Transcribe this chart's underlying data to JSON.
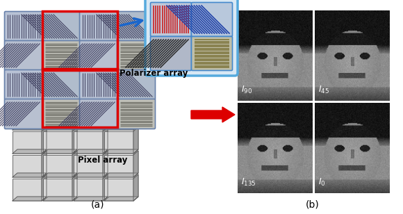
{
  "title_a": "(a)",
  "title_b": "(b)",
  "label_polarizer": "Polarizer array",
  "label_pixel": "Pixel array",
  "bg_color": "#ffffff",
  "red_arrow_color": "#dd0000",
  "blue_arrow_color": "#1a66cc",
  "red_rect_color": "#dd0000",
  "blue_border_color": "#5599dd",
  "text_color_black": "#000000",
  "text_color_white": "#ffffff",
  "fig_w": 5.8,
  "fig_h": 3.08,
  "dpi": 100
}
